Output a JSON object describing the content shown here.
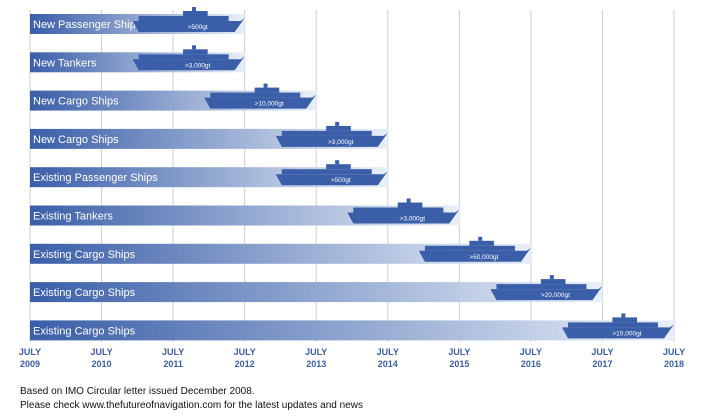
{
  "chart_data": {
    "type": "timeline",
    "ticks": [
      {
        "month": "JULY",
        "year": "2009"
      },
      {
        "month": "JULY",
        "year": "2010"
      },
      {
        "month": "JULY",
        "year": "2011"
      },
      {
        "month": "JULY",
        "year": "2012"
      },
      {
        "month": "JULY",
        "year": "2013"
      },
      {
        "month": "JULY",
        "year": "2014"
      },
      {
        "month": "JULY",
        "year": "2015"
      },
      {
        "month": "JULY",
        "year": "2016"
      },
      {
        "month": "JULY",
        "year": "2017"
      },
      {
        "month": "JULY",
        "year": "2018"
      }
    ],
    "xlim": [
      "2009-07",
      "2018-07"
    ],
    "grid": true,
    "rows": [
      {
        "label": "New Passenger Ships",
        "size": ">500gt",
        "deadline": "2012-07"
      },
      {
        "label": "New Tankers",
        "size": ">3,000gt",
        "deadline": "2012-07"
      },
      {
        "label": "New Cargo Ships",
        "size": ">10,000gt",
        "deadline": "2013-07"
      },
      {
        "label": "New Cargo Ships",
        "size": ">3,000gt",
        "deadline": "2014-07"
      },
      {
        "label": "Existing Passenger Ships",
        "size": ">500gt",
        "deadline": "2014-07"
      },
      {
        "label": "Existing Tankers",
        "size": ">3,000gt",
        "deadline": "2015-07"
      },
      {
        "label": "Existing Cargo Ships",
        "size": ">50,000gt",
        "deadline": "2016-07"
      },
      {
        "label": "Existing Cargo Ships",
        "size": ">20,000gt",
        "deadline": "2017-07"
      },
      {
        "label": "Existing Cargo Ships",
        "size": ">10,000gt",
        "deadline": "2018-07"
      }
    ]
  },
  "colors": {
    "accent": "#3a5ea8",
    "ship": "#3a5ea8",
    "bar_end": "#e8eff8",
    "grid": "#c9ced6"
  },
  "footnotes": {
    "line1": "Based on IMO Circular letter issued December 2008.",
    "line2": "Please check www.thefutureofnavigation.com for the latest updates and news"
  }
}
